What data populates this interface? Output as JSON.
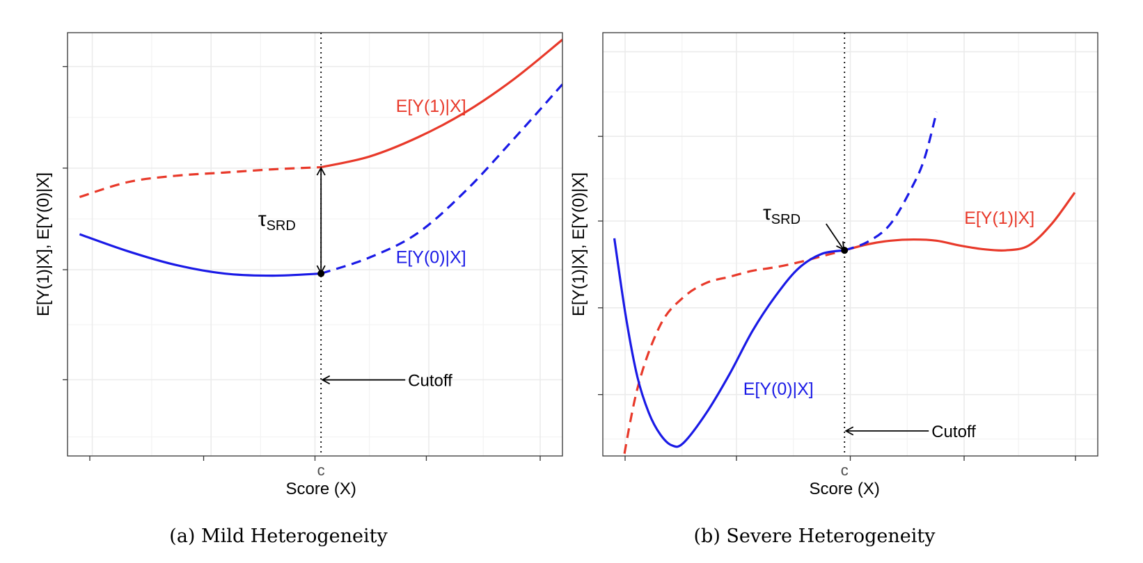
{
  "colors": {
    "treated": "#e8392a",
    "control": "#1a1ae6",
    "grid": "#ebebeb",
    "panel_border": "#333333",
    "text": "#000000",
    "tick_text": "#4d4d4d"
  },
  "chart_data": [
    {
      "type": "line",
      "caption": "(a) Mild Heterogeneity",
      "xlabel": "Score (X)",
      "ylabel": "E[Y(1)|X], E[Y(0)|X]",
      "xlim": [
        -1.05,
        1.0
      ],
      "ylim": [
        -1.65,
        2.2
      ],
      "x_tick_label": "c",
      "cutoff_x": 0,
      "cutoff_label": "Cutoff",
      "cutoff_arrow_y": -1.0,
      "grid": true,
      "legend": "none",
      "tau_label": "τ",
      "tau_subscript": "SRD",
      "tau_label_pos": [
        -0.18,
        0.5
      ],
      "tau_from": [
        0,
        1.0
      ],
      "tau_to": [
        0,
        0
      ],
      "series": [
        {
          "name": "E[Y(1)|X]",
          "color": "#e8392a",
          "label_pos": [
            0.31,
            1.52
          ],
          "segments": [
            {
              "style": "dashed",
              "x": [
                -1.0,
                -0.8,
                -0.6,
                -0.4,
                -0.2,
                0.0
              ],
              "y": [
                0.72,
                0.86,
                0.92,
                0.95,
                0.98,
                1.0
              ]
            },
            {
              "style": "solid",
              "x": [
                0.0,
                0.2,
                0.4,
                0.6,
                0.8,
                1.0
              ],
              "y": [
                1.0,
                1.1,
                1.28,
                1.52,
                1.83,
                2.2
              ]
            }
          ]
        },
        {
          "name": "E[Y(0)|X]",
          "color": "#1a1ae6",
          "label_pos": [
            0.31,
            0.1
          ],
          "segments": [
            {
              "style": "solid",
              "x": [
                -1.0,
                -0.8,
                -0.6,
                -0.4,
                -0.2,
                0.0
              ],
              "y": [
                0.37,
                0.21,
                0.08,
                0.0,
                -0.02,
                0.0
              ]
            },
            {
              "style": "dashed",
              "x": [
                0.0,
                0.2,
                0.4,
                0.6,
                0.8,
                1.0
              ],
              "y": [
                0.0,
                0.15,
                0.38,
                0.78,
                1.27,
                1.78
              ]
            }
          ]
        }
      ]
    },
    {
      "type": "line",
      "caption": "(b) Severe Heterogeneity",
      "xlabel": "Score (X)",
      "ylabel": "E[Y(1)|X], E[Y(0)|X]",
      "xlim": [
        -1.05,
        1.1
      ],
      "ylim": [
        -1.65,
        1.75
      ],
      "x_tick_label": "c",
      "cutoff_x": 0,
      "cutoff_label": "Cutoff",
      "cutoff_arrow_y": -1.5,
      "grid": true,
      "legend": "none",
      "tau_label": "τ",
      "tau_subscript": "SRD",
      "tau_label_pos": [
        -0.27,
        0.3
      ],
      "tau_arrow_from": [
        -0.08,
        0.22
      ],
      "tau_point": [
        0,
        0
      ],
      "series": [
        {
          "name": "E[Y(1)|X]",
          "color": "#e8392a",
          "label_pos": [
            0.52,
            0.22
          ],
          "segments": [
            {
              "style": "dashed",
              "x": [
                -0.98,
                -0.9,
                -0.8,
                -0.7,
                -0.6,
                -0.5,
                -0.4,
                -0.3,
                -0.2,
                -0.1,
                0.0
              ],
              "y": [
                -1.95,
                -1.15,
                -0.62,
                -0.39,
                -0.27,
                -0.22,
                -0.17,
                -0.14,
                -0.1,
                -0.05,
                0.0
              ]
            },
            {
              "style": "solid",
              "x": [
                0.0,
                0.1,
                0.2,
                0.3,
                0.4,
                0.5,
                0.6,
                0.7,
                0.8,
                0.9,
                1.0
              ],
              "y": [
                0.0,
                0.05,
                0.08,
                0.09,
                0.08,
                0.04,
                0.01,
                0.0,
                0.04,
                0.22,
                0.48
              ]
            }
          ]
        },
        {
          "name": "E[Y(0)|X]",
          "color": "#1a1ae6",
          "label_pos": [
            -0.44,
            -1.2
          ],
          "segments": [
            {
              "style": "solid",
              "x": [
                -1.0,
                -0.95,
                -0.9,
                -0.85,
                -0.8,
                -0.75,
                -0.7,
                -0.6,
                -0.5,
                -0.4,
                -0.3,
                -0.2,
                -0.1,
                0.0
              ],
              "y": [
                0.1,
                -0.55,
                -1.05,
                -1.35,
                -1.53,
                -1.62,
                -1.6,
                -1.35,
                -1.03,
                -0.67,
                -0.38,
                -0.15,
                -0.03,
                0.0
              ]
            },
            {
              "style": "dashed",
              "x": [
                0.0,
                0.1,
                0.2,
                0.3,
                0.35,
                0.4
              ],
              "y": [
                0.0,
                0.07,
                0.22,
                0.55,
                0.78,
                1.15
              ]
            }
          ]
        }
      ]
    }
  ]
}
